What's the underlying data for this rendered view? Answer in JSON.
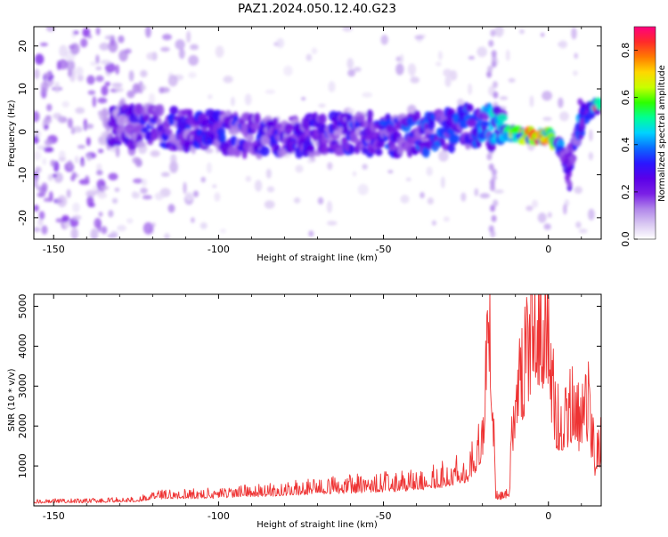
{
  "title": "PAZ1.2024.050.12.40.G23",
  "colors": {
    "snr_line": "#ee3333",
    "colormap": [
      "#ffffff",
      "#d9c8f2",
      "#b085ea",
      "#7a1fe6",
      "#5a00e8",
      "#2a16ff",
      "#0a6bff",
      "#00d2ff",
      "#00ff96",
      "#2dff00",
      "#c8ff00",
      "#ffd700",
      "#ff7a00",
      "#ff2a2a",
      "#ff0080"
    ]
  },
  "chart_data": [
    {
      "type": "heatmap",
      "xlabel": "Height of straight line (km)",
      "ylabel": "Frequency (Hz)",
      "xlim": [
        -156,
        16
      ],
      "ylim": [
        -25,
        24.5
      ],
      "x_ticks": [
        -150,
        -100,
        -50,
        0
      ],
      "y_ticks": [
        20,
        10,
        0,
        -10,
        -20
      ],
      "colorbar": {
        "label": "Normalized spectral amplitude",
        "range": [
          0.0,
          0.9
        ],
        "ticks": [
          "0.0",
          "0.2",
          "0.4",
          "0.6",
          "0.8"
        ]
      },
      "ridge": [
        {
          "x": -133,
          "f": 2.0,
          "amp": 0.25
        },
        {
          "x": -120,
          "f": 1.0,
          "amp": 0.3
        },
        {
          "x": -100,
          "f": 0.0,
          "amp": 0.32
        },
        {
          "x": -80,
          "f": -1.5,
          "amp": 0.3
        },
        {
          "x": -60,
          "f": 0.0,
          "amp": 0.32
        },
        {
          "x": -45,
          "f": -1.0,
          "amp": 0.35
        },
        {
          "x": -30,
          "f": 0.5,
          "amp": 0.38
        },
        {
          "x": -20,
          "f": 2.0,
          "amp": 0.4
        },
        {
          "x": -12,
          "f": -0.5,
          "amp": 0.55
        },
        {
          "x": -5,
          "f": -1.0,
          "amp": 0.8
        },
        {
          "x": 0,
          "f": -1.0,
          "amp": 0.75
        },
        {
          "x": 3,
          "f": -3.0,
          "amp": 0.45
        },
        {
          "x": 6,
          "f": -8.0,
          "amp": 0.3
        },
        {
          "x": 10,
          "f": 3.0,
          "amp": 0.4
        },
        {
          "x": 14,
          "f": 6.0,
          "amp": 0.7
        }
      ]
    },
    {
      "type": "line",
      "xlabel": "Height of straight line (km)",
      "ylabel": "SNR (10 * v/v)",
      "xlim": [
        -156,
        16
      ],
      "ylim": [
        0,
        5300
      ],
      "x_ticks": [
        -150,
        -100,
        -50,
        0
      ],
      "y_ticks": [
        1000,
        2000,
        3000,
        4000,
        5000
      ],
      "series": [
        {
          "x": [
            -156,
            -150,
            -140,
            -130,
            -125,
            -120,
            -110,
            -100,
            -90,
            -80,
            -70,
            -60,
            -50,
            -40,
            -30,
            -25,
            -20,
            -18,
            -16,
            -14,
            -12,
            -10,
            -8,
            -6,
            -4,
            -2,
            0,
            2,
            4,
            6,
            8,
            10,
            12,
            14,
            16
          ],
          "values": [
            100,
            120,
            120,
            140,
            150,
            250,
            280,
            300,
            350,
            400,
            450,
            500,
            550,
            600,
            750,
            900,
            1500,
            5200,
            250,
            250,
            300,
            2800,
            3200,
            3800,
            4500,
            4600,
            3900,
            2300,
            1800,
            2200,
            2400,
            2000,
            2600,
            1200,
            1500
          ]
        }
      ]
    }
  ]
}
